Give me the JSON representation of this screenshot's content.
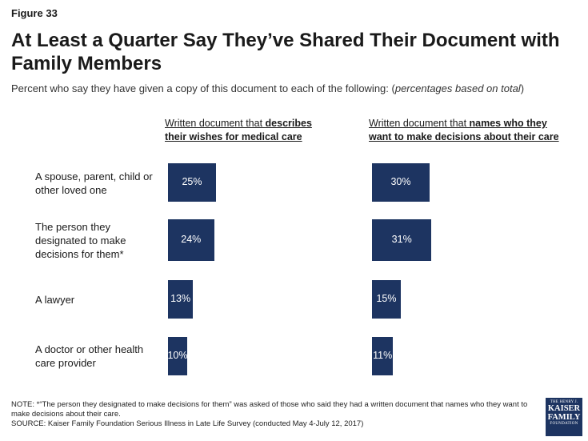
{
  "figure_label": "Figure 33",
  "title": "At Least a Quarter Say They’ve Shared Their Document with Family Members",
  "subtitle_main": "Percent who say they have given a copy of this document to each of the following: (",
  "subtitle_italic": "percentages based on total",
  "subtitle_end": ")",
  "col1_header_plain": "Written document that ",
  "col1_header_bold": "describes their wishes for medical care",
  "col2_header_plain": "Written document that ",
  "col2_header_bold": "names who they want to make decisions about their care",
  "note_line1": "NOTE: *“The person they designated to make decisions for them” was asked of those who said they had a written document that names who they want to make decisions about their care.",
  "source_line": "SOURCE: Kaiser Family Foundation Serious Illness in Late Life Survey (conducted May 4-July 12, 2017)",
  "logo": {
    "line1": "THE HENRY J.",
    "line2": "KAISER",
    "line3": "FAMILY",
    "line4": "FOUNDATION"
  },
  "colors": {
    "bar": "#1d3461",
    "bar_text": "#ffffff"
  },
  "chart_data": {
    "type": "bar",
    "orientation": "horizontal",
    "categories": [
      "A spouse, parent, child or other loved one",
      "The person they designated to make decisions for them*",
      "A lawyer",
      "A doctor or other health care provider"
    ],
    "series": [
      {
        "name": "Written document that describes their wishes for medical care",
        "values": [
          25,
          24,
          13,
          10
        ]
      },
      {
        "name": "Written document that names who they want to make decisions about their care",
        "values": [
          30,
          31,
          15,
          11
        ]
      }
    ],
    "value_suffix": "%",
    "xlim": [
      0,
      100
    ]
  }
}
